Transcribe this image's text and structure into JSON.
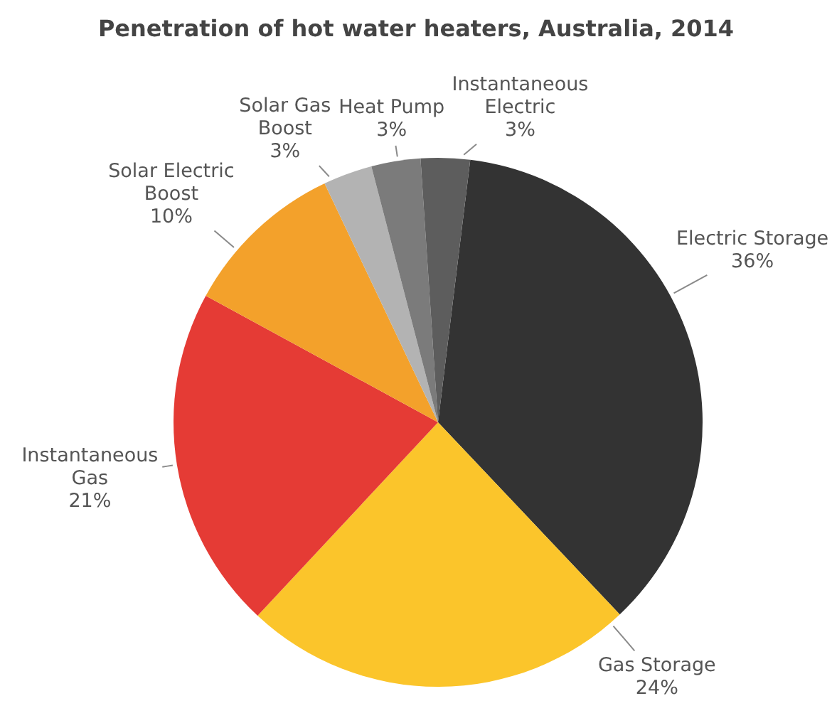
{
  "chart_data": {
    "type": "pie",
    "title": "Penetration of hot water heaters, Australia, 2014",
    "categories": [
      "Electric Storage",
      "Gas Storage",
      "Instantaneous Gas",
      "Solar Electric Boost",
      "Solar Gas Boost",
      "Heat Pump",
      "Instantaneous Electric"
    ],
    "values": [
      36,
      24,
      21,
      10,
      3,
      3,
      3
    ],
    "value_labels": [
      "36%",
      "24%",
      "21%",
      "10%",
      "3%",
      "3%",
      "3%"
    ],
    "colors": [
      "#333333",
      "#fbc52b",
      "#e53b35",
      "#f3a12b",
      "#b3b3b3",
      "#7b7b7b",
      "#5d5d5d"
    ]
  }
}
